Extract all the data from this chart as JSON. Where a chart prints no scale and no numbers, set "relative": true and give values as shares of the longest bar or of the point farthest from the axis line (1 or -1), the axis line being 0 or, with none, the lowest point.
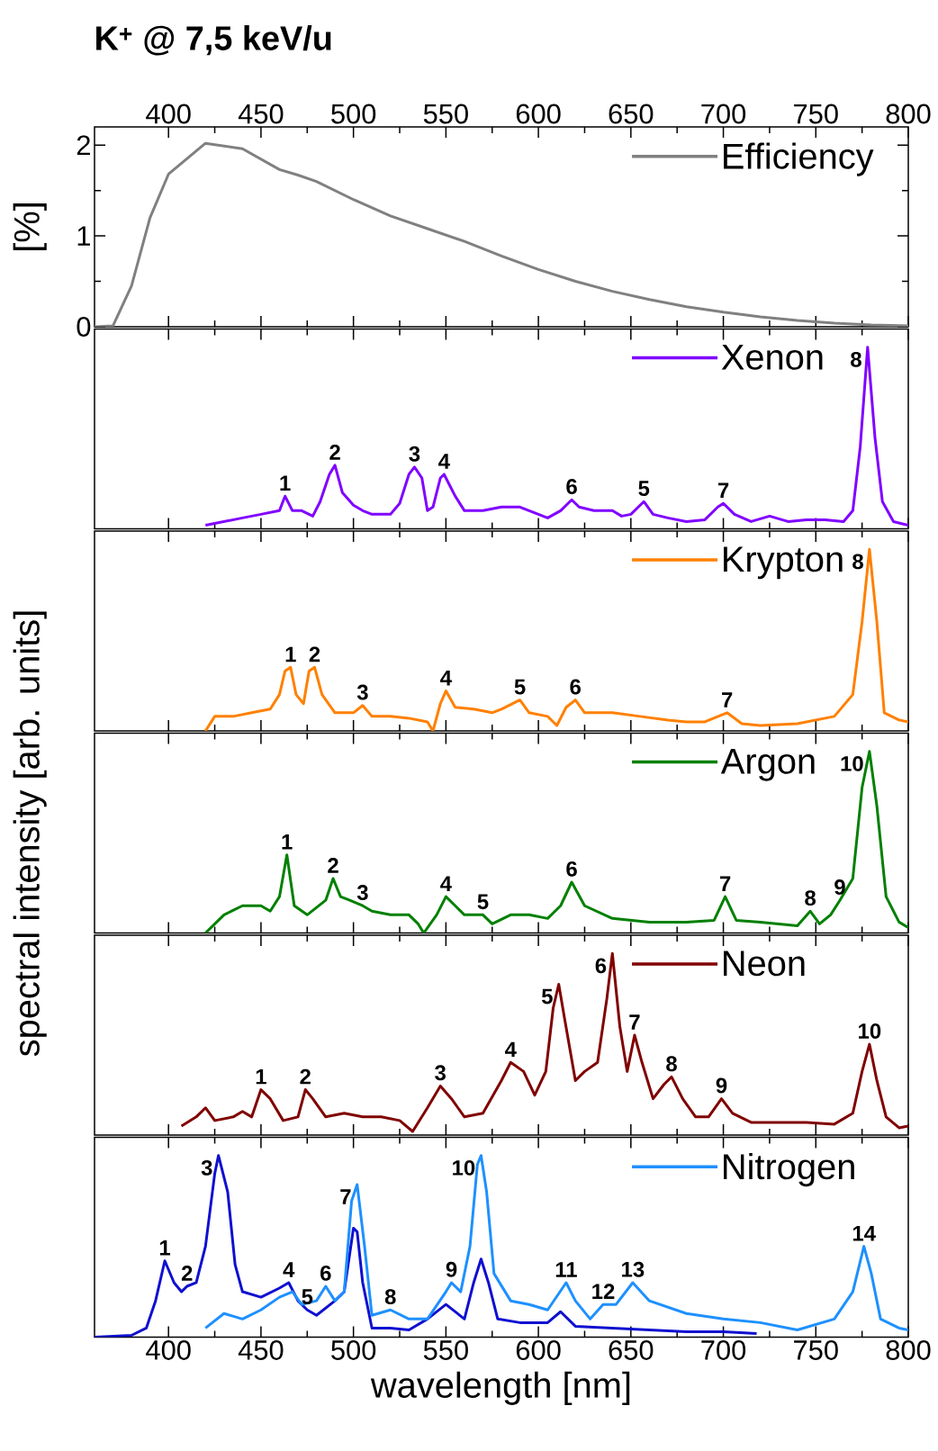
{
  "chart_data": [
    {
      "type": "line",
      "title": "K$^{+}$ @ 7,5 keV/u",
      "ylabel": "[%]",
      "xlim": [
        360,
        800
      ],
      "xticks": [
        400,
        450,
        500,
        550,
        600,
        650,
        700,
        750,
        800
      ],
      "ylim": [
        0,
        2.2
      ],
      "yticks": [
        0,
        1,
        2
      ],
      "legend": "top right",
      "marker": "none",
      "series": [
        {
          "name": "Efficiency",
          "color": "#808080",
          "x": [
            360,
            370,
            380,
            390,
            400,
            420,
            440,
            460,
            470,
            480,
            500,
            520,
            540,
            560,
            580,
            600,
            620,
            640,
            660,
            680,
            700,
            720,
            740,
            760,
            780,
            800
          ],
          "values": [
            0,
            0.01,
            0.45,
            1.2,
            1.68,
            2.02,
            1.96,
            1.73,
            1.67,
            1.6,
            1.4,
            1.22,
            1.08,
            0.94,
            0.78,
            0.63,
            0.5,
            0.39,
            0.3,
            0.22,
            0.16,
            0.11,
            0.07,
            0.04,
            0.02,
            0.01
          ]
        }
      ]
    },
    {
      "type": "line",
      "relative": true,
      "xlim": [
        360,
        800
      ],
      "xticks": [
        400,
        450,
        500,
        550,
        600,
        650,
        700,
        750,
        800
      ],
      "tick_labels": false,
      "legend": "top right",
      "marker": "none",
      "series": [
        {
          "name": "Xenon",
          "color": "#8000ff",
          "x": [
            420,
            430,
            440,
            450,
            460,
            463,
            467,
            472,
            478,
            482,
            487,
            490,
            494,
            500,
            505,
            510,
            520,
            525,
            530,
            533,
            537,
            540,
            543,
            547,
            549,
            555,
            560,
            570,
            580,
            590,
            600,
            605,
            612,
            618,
            622,
            630,
            640,
            645,
            650,
            657,
            662,
            670,
            680,
            690,
            697,
            700,
            706,
            715,
            725,
            735,
            745,
            755,
            765,
            770,
            774,
            778,
            782,
            786,
            792,
            800
          ],
          "values": [
            0.02,
            0.04,
            0.06,
            0.08,
            0.1,
            0.18,
            0.1,
            0.1,
            0.07,
            0.15,
            0.3,
            0.35,
            0.2,
            0.13,
            0.1,
            0.08,
            0.08,
            0.14,
            0.3,
            0.34,
            0.28,
            0.1,
            0.12,
            0.28,
            0.3,
            0.18,
            0.1,
            0.1,
            0.12,
            0.12,
            0.08,
            0.06,
            0.1,
            0.16,
            0.12,
            0.1,
            0.1,
            0.07,
            0.08,
            0.15,
            0.08,
            0.06,
            0.04,
            0.05,
            0.12,
            0.14,
            0.08,
            0.04,
            0.07,
            0.04,
            0.05,
            0.05,
            0.04,
            0.1,
            0.45,
            1.0,
            0.5,
            0.15,
            0.04,
            0.02
          ]
        }
      ],
      "annotations": [
        {
          "text": "1",
          "x": 463,
          "y": 0.18
        },
        {
          "text": "2",
          "x": 490,
          "y": 0.35
        },
        {
          "text": "3",
          "x": 533,
          "y": 0.34
        },
        {
          "text": "4",
          "x": 549,
          "y": 0.3
        },
        {
          "text": "6",
          "x": 618,
          "y": 0.16
        },
        {
          "text": "5",
          "x": 657,
          "y": 0.15
        },
        {
          "text": "7",
          "x": 700,
          "y": 0.14
        },
        {
          "text": "8",
          "x": 778,
          "y": 1.0
        }
      ]
    },
    {
      "type": "line",
      "relative": true,
      "xlim": [
        360,
        800
      ],
      "xticks": [
        400,
        450,
        500,
        550,
        600,
        650,
        700,
        750,
        800
      ],
      "tick_labels": false,
      "legend": "top right",
      "marker": "none",
      "series": [
        {
          "name": "Krypton",
          "color": "#ff8000",
          "x": [
            420,
            425,
            435,
            445,
            455,
            460,
            463,
            466,
            469,
            473,
            476,
            479,
            483,
            490,
            500,
            505,
            510,
            520,
            530,
            540,
            543,
            547,
            550,
            555,
            565,
            575,
            580,
            590,
            595,
            605,
            610,
            615,
            620,
            625,
            640,
            655,
            670,
            680,
            690,
            702,
            710,
            720,
            740,
            760,
            770,
            775,
            779,
            783,
            787,
            795,
            800
          ],
          "values": [
            0.0,
            0.08,
            0.08,
            0.1,
            0.12,
            0.2,
            0.33,
            0.35,
            0.2,
            0.15,
            0.33,
            0.35,
            0.2,
            0.1,
            0.1,
            0.14,
            0.08,
            0.08,
            0.07,
            0.05,
            0.0,
            0.15,
            0.22,
            0.13,
            0.12,
            0.1,
            0.12,
            0.17,
            0.1,
            0.08,
            0.03,
            0.13,
            0.17,
            0.1,
            0.1,
            0.08,
            0.06,
            0.05,
            0.05,
            0.1,
            0.04,
            0.03,
            0.04,
            0.08,
            0.2,
            0.6,
            1.0,
            0.6,
            0.1,
            0.06,
            0.05
          ]
        }
      ],
      "annotations": [
        {
          "text": "1",
          "x": 466,
          "y": 0.35
        },
        {
          "text": "2",
          "x": 479,
          "y": 0.35
        },
        {
          "text": "3",
          "x": 505,
          "y": 0.14
        },
        {
          "text": "4",
          "x": 550,
          "y": 0.22
        },
        {
          "text": "5",
          "x": 590,
          "y": 0.17
        },
        {
          "text": "6",
          "x": 620,
          "y": 0.17
        },
        {
          "text": "7",
          "x": 702,
          "y": 0.1
        },
        {
          "text": "8",
          "x": 779,
          "y": 1.0
        }
      ]
    },
    {
      "type": "line",
      "relative": true,
      "ylabel": "spectral intensity [arb. units]",
      "xlim": [
        360,
        800
      ],
      "xticks": [
        400,
        450,
        500,
        550,
        600,
        650,
        700,
        750,
        800
      ],
      "tick_labels": false,
      "legend": "top right",
      "marker": "none",
      "series": [
        {
          "name": "Argon",
          "color": "#008000",
          "x": [
            420,
            430,
            440,
            450,
            455,
            460,
            464,
            468,
            475,
            485,
            489,
            493,
            498,
            505,
            510,
            520,
            530,
            535,
            538,
            545,
            550,
            555,
            560,
            570,
            575,
            585,
            595,
            605,
            612,
            618,
            625,
            640,
            660,
            680,
            695,
            701,
            707,
            720,
            740,
            747,
            752,
            758,
            763,
            770,
            775,
            779,
            783,
            788,
            795,
            800
          ],
          "values": [
            0.0,
            0.1,
            0.15,
            0.15,
            0.12,
            0.2,
            0.43,
            0.15,
            0.1,
            0.18,
            0.3,
            0.2,
            0.18,
            0.15,
            0.12,
            0.1,
            0.1,
            0.05,
            0.0,
            0.1,
            0.2,
            0.15,
            0.1,
            0.1,
            0.05,
            0.1,
            0.1,
            0.08,
            0.15,
            0.28,
            0.15,
            0.08,
            0.06,
            0.06,
            0.07,
            0.2,
            0.07,
            0.06,
            0.04,
            0.12,
            0.05,
            0.1,
            0.18,
            0.3,
            0.8,
            1.0,
            0.7,
            0.2,
            0.06,
            0.03
          ]
        }
      ],
      "annotations": [
        {
          "text": "1",
          "x": 464,
          "y": 0.43
        },
        {
          "text": "2",
          "x": 489,
          "y": 0.3
        },
        {
          "text": "3",
          "x": 505,
          "y": 0.15
        },
        {
          "text": "4",
          "x": 550,
          "y": 0.2
        },
        {
          "text": "5",
          "x": 570,
          "y": 0.1
        },
        {
          "text": "6",
          "x": 618,
          "y": 0.28
        },
        {
          "text": "7",
          "x": 701,
          "y": 0.2
        },
        {
          "text": "8",
          "x": 747,
          "y": 0.12
        },
        {
          "text": "9",
          "x": 763,
          "y": 0.18
        },
        {
          "text": "10",
          "x": 779,
          "y": 1.0
        }
      ]
    },
    {
      "type": "line",
      "relative": true,
      "xlim": [
        360,
        800
      ],
      "xticks": [
        400,
        450,
        500,
        550,
        600,
        650,
        700,
        750,
        800
      ],
      "tick_labels": false,
      "legend": "top right",
      "marker": "none",
      "series": [
        {
          "name": "Neon",
          "color": "#800000",
          "x": [
            407,
            415,
            420,
            425,
            435,
            440,
            445,
            450,
            455,
            462,
            470,
            474,
            478,
            485,
            495,
            505,
            515,
            525,
            532,
            540,
            547,
            553,
            560,
            570,
            580,
            585,
            592,
            598,
            604,
            608,
            611,
            614,
            620,
            625,
            632,
            637,
            640,
            644,
            648,
            652,
            656,
            662,
            668,
            672,
            678,
            685,
            692,
            699,
            705,
            715,
            730,
            745,
            760,
            770,
            775,
            779,
            783,
            788,
            795,
            800
          ],
          "values": [
            0.05,
            0.1,
            0.15,
            0.08,
            0.1,
            0.13,
            0.1,
            0.25,
            0.2,
            0.08,
            0.1,
            0.25,
            0.2,
            0.1,
            0.12,
            0.1,
            0.1,
            0.08,
            0.02,
            0.15,
            0.27,
            0.2,
            0.1,
            0.12,
            0.3,
            0.4,
            0.35,
            0.22,
            0.35,
            0.7,
            0.83,
            0.65,
            0.3,
            0.35,
            0.4,
            0.75,
            1.0,
            0.6,
            0.35,
            0.55,
            0.4,
            0.2,
            0.28,
            0.32,
            0.2,
            0.1,
            0.1,
            0.2,
            0.12,
            0.07,
            0.07,
            0.07,
            0.06,
            0.12,
            0.35,
            0.5,
            0.3,
            0.1,
            0.04,
            0.05
          ]
        }
      ],
      "annotations": [
        {
          "text": "1",
          "x": 450,
          "y": 0.25
        },
        {
          "text": "2",
          "x": 474,
          "y": 0.25
        },
        {
          "text": "3",
          "x": 547,
          "y": 0.27
        },
        {
          "text": "4",
          "x": 585,
          "y": 0.4
        },
        {
          "text": "5",
          "x": 611,
          "y": 0.83
        },
        {
          "text": "6",
          "x": 640,
          "y": 1.0
        },
        {
          "text": "7",
          "x": 652,
          "y": 0.55
        },
        {
          "text": "8",
          "x": 672,
          "y": 0.32
        },
        {
          "text": "9",
          "x": 699,
          "y": 0.2
        },
        {
          "text": "10",
          "x": 779,
          "y": 0.5
        }
      ]
    },
    {
      "type": "line",
      "relative": true,
      "xlabel": "wavelength [nm]",
      "xlim": [
        360,
        800
      ],
      "xticks": [
        400,
        450,
        500,
        550,
        600,
        650,
        700,
        750,
        800
      ],
      "tick_labels": "x",
      "legend": "top right",
      "marker": "none",
      "series": [
        {
          "color": "#1010d0",
          "x": [
            360,
            380,
            388,
            393,
            398,
            403,
            407,
            410,
            415,
            420,
            425,
            427,
            432,
            436,
            440,
            450,
            460,
            465,
            470,
            475,
            480,
            490,
            495,
            500,
            502,
            505,
            510,
            520,
            530,
            540,
            550,
            560,
            565,
            569,
            573,
            578,
            590,
            605,
            612,
            620,
            640,
            660,
            680,
            700,
            718
          ],
          "values": [
            0.0,
            0.01,
            0.05,
            0.2,
            0.42,
            0.3,
            0.25,
            0.28,
            0.3,
            0.5,
            0.9,
            1.0,
            0.8,
            0.4,
            0.25,
            0.22,
            0.27,
            0.3,
            0.2,
            0.15,
            0.12,
            0.2,
            0.25,
            0.6,
            0.58,
            0.3,
            0.05,
            0.05,
            0.04,
            0.1,
            0.18,
            0.1,
            0.3,
            0.43,
            0.3,
            0.1,
            0.08,
            0.08,
            0.14,
            0.06,
            0.05,
            0.04,
            0.03,
            0.03,
            0.02
          ]
        },
        {
          "name": "Nitrogen",
          "color": "#1e90ff",
          "x": [
            420,
            430,
            440,
            450,
            460,
            467,
            472,
            480,
            485,
            490,
            495,
            499,
            502,
            506,
            510,
            520,
            530,
            540,
            550,
            553,
            558,
            563,
            567,
            569,
            572,
            576,
            585,
            595,
            605,
            615,
            620,
            628,
            635,
            642,
            651,
            660,
            680,
            700,
            720,
            740,
            760,
            770,
            776,
            780,
            785,
            795,
            800
          ],
          "values": [
            0.05,
            0.13,
            0.1,
            0.15,
            0.22,
            0.25,
            0.18,
            0.2,
            0.28,
            0.2,
            0.25,
            0.75,
            0.84,
            0.5,
            0.12,
            0.15,
            0.1,
            0.1,
            0.25,
            0.3,
            0.25,
            0.5,
            0.95,
            1.0,
            0.8,
            0.35,
            0.2,
            0.18,
            0.15,
            0.3,
            0.2,
            0.1,
            0.18,
            0.18,
            0.3,
            0.2,
            0.13,
            0.1,
            0.08,
            0.04,
            0.1,
            0.25,
            0.5,
            0.35,
            0.1,
            0.05,
            0.04
          ]
        }
      ],
      "annotations": [
        {
          "text": "1",
          "x": 398,
          "y": 0.42
        },
        {
          "text": "2",
          "x": 410,
          "y": 0.28
        },
        {
          "text": "3",
          "x": 427,
          "y": 1.0
        },
        {
          "text": "4",
          "x": 465,
          "y": 0.3
        },
        {
          "text": "5",
          "x": 475,
          "y": 0.15
        },
        {
          "text": "6",
          "x": 485,
          "y": 0.28
        },
        {
          "text": "7",
          "x": 502,
          "y": 0.84
        },
        {
          "text": "8",
          "x": 520,
          "y": 0.15
        },
        {
          "text": "9",
          "x": 553,
          "y": 0.3
        },
        {
          "text": "10",
          "x": 569,
          "y": 1.0
        },
        {
          "text": "11",
          "x": 615,
          "y": 0.3
        },
        {
          "text": "12",
          "x": 635,
          "y": 0.18
        },
        {
          "text": "13",
          "x": 651,
          "y": 0.3
        },
        {
          "text": "14",
          "x": 776,
          "y": 0.5
        }
      ]
    }
  ]
}
